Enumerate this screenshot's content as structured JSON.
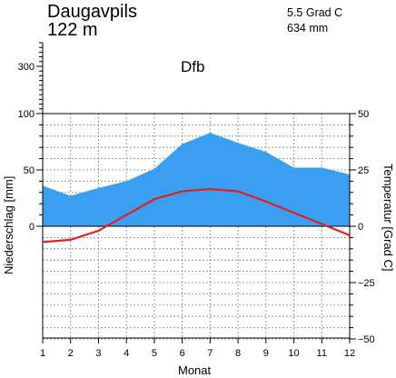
{
  "header": {
    "station": "Daugavpils",
    "elevation": "122 m",
    "mean_temperature": "5.5 Grad C",
    "annual_precipitation": "634 mm",
    "climate_class": "Dfb"
  },
  "chart_data": {
    "type": "line",
    "x": [
      1,
      2,
      3,
      4,
      5,
      6,
      7,
      8,
      9,
      10,
      11,
      12
    ],
    "xlabel": "Monat",
    "ylabel_left": "Niederschlag [mm]",
    "ylabel_right": "Temperatur [Grad C]",
    "precip_ylim": [
      -100,
      100
    ],
    "precip_extra_tick": 300,
    "temp_ylim": [
      -50,
      50
    ],
    "left_ticks": [
      0,
      50,
      100
    ],
    "left_extra_ticks": [
      300
    ],
    "right_ticks": [
      -50,
      -25,
      0,
      25,
      50
    ],
    "grid": true,
    "series": [
      {
        "name": "",
        "kind": "area",
        "axis": "left",
        "color": "#3a9ff0",
        "values": [
          36,
          27,
          34,
          40,
          51,
          73,
          83,
          74,
          66,
          52,
          52,
          46
        ]
      },
      {
        "name": "",
        "kind": "line",
        "axis": "right",
        "color": "#e02020",
        "values": [
          -7,
          -6,
          -2,
          5,
          12,
          15.5,
          16.5,
          15.5,
          11,
          6,
          1,
          -4
        ]
      }
    ]
  }
}
